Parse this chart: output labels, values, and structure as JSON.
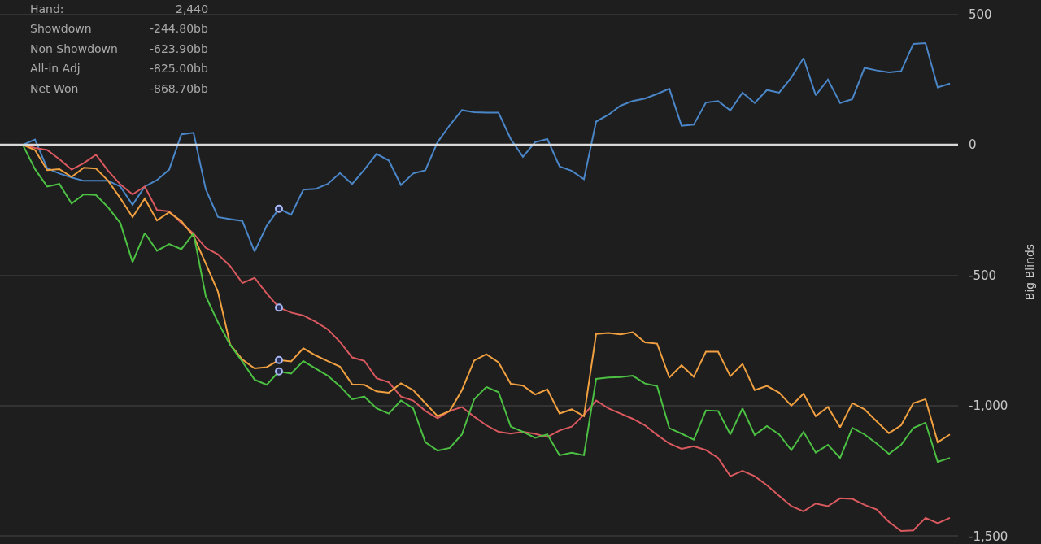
{
  "chart_data": {
    "type": "line",
    "ylabel": "Big Blinds",
    "ylim": [
      -1530,
      555
    ],
    "categories": [
      null,
      null,
      null,
      null,
      null,
      null,
      null,
      null,
      null,
      null,
      null,
      null,
      null,
      null,
      null,
      null,
      null,
      null,
      null,
      null,
      null,
      null,
      null,
      null,
      null,
      null,
      null,
      null,
      null,
      null,
      null,
      null,
      null,
      null,
      null,
      null,
      null,
      null,
      null,
      null,
      null,
      null,
      null,
      null,
      null,
      null,
      null,
      null,
      null,
      null,
      null,
      null,
      null,
      null,
      null,
      null,
      null,
      null,
      null,
      null,
      null,
      null,
      null,
      null,
      null,
      null,
      null,
      null,
      null,
      null,
      null,
      null,
      null,
      null,
      null,
      null,
      null
    ],
    "yticks": [
      500,
      0,
      -500,
      {
        "value": -1000,
        "label": "-1,000"
      },
      {
        "value": -1500,
        "label": "-1,500"
      }
    ],
    "tick_labels": "y",
    "grid": "y",
    "marker": "none",
    "ref_lines": [
      {
        "axis": "y",
        "value": 0,
        "color": "#d8d8d8"
      }
    ],
    "annotations": [
      "Hand:",
      "2,440",
      "Showdown",
      "-244.80bb",
      "Non Showdown",
      "-623.90bb",
      "All-in Adj",
      "-825.00bb",
      "Net Won",
      "-868.70bb"
    ],
    "series": [
      {
        "color": "#4a86c8",
        "values": [
          0,
          20,
          -90,
          -110,
          -125,
          -138,
          -138,
          -138,
          -160,
          -230,
          -160,
          -135,
          -95,
          40,
          46,
          -170,
          -277,
          -285,
          -292,
          -409,
          -310,
          -244.8,
          -268,
          -172,
          -169,
          -150,
          -108,
          -150,
          -95,
          -35,
          -60,
          -154,
          -110,
          -98,
          10,
          75,
          133,
          125,
          123,
          123,
          22,
          -46,
          10,
          22,
          -83,
          -100,
          -132,
          89,
          115,
          150,
          168,
          177,
          195,
          215,
          73,
          77,
          162,
          168,
          132,
          200,
          160,
          210,
          200,
          258,
          332,
          190,
          250,
          160,
          175,
          295,
          285,
          278,
          282,
          387,
          390,
          220,
          235
        ]
      },
      {
        "color": "#d9595f",
        "values": [
          0,
          -12,
          -20,
          -55,
          -95,
          -70,
          -38,
          -100,
          -152,
          -190,
          -160,
          -250,
          -255,
          -300,
          -340,
          -395,
          -420,
          -465,
          -530,
          -510,
          -570,
          -623.9,
          -643,
          -654,
          -678,
          -707,
          -755,
          -815,
          -828,
          -895,
          -910,
          -965,
          -980,
          -1020,
          -1048,
          -1020,
          -1005,
          -1042,
          -1075,
          -1100,
          -1107,
          -1100,
          -1108,
          -1120,
          -1095,
          -1080,
          -1035,
          -980,
          -1010,
          -1030,
          -1050,
          -1075,
          -1112,
          -1145,
          -1165,
          -1155,
          -1170,
          -1200,
          -1270,
          -1250,
          -1270,
          -1305,
          -1345,
          -1385,
          -1405,
          -1375,
          -1385,
          -1355,
          -1357,
          -1380,
          -1398,
          -1445,
          -1480,
          -1478,
          -1430,
          -1450,
          -1430
        ]
      },
      {
        "color": "#f0a040",
        "values": [
          0,
          -20,
          -97,
          -93,
          -123,
          -88,
          -91,
          -138,
          -205,
          -277,
          -206,
          -290,
          -258,
          -293,
          -350,
          -455,
          -563,
          -765,
          -823,
          -857,
          -852,
          -825,
          -830,
          -780,
          -807,
          -829,
          -850,
          -918,
          -920,
          -945,
          -950,
          -914,
          -940,
          -990,
          -1040,
          -1020,
          -940,
          -827,
          -803,
          -834,
          -916,
          -923,
          -957,
          -937,
          -1030,
          -1014,
          -1040,
          -725,
          -721,
          -727,
          -718,
          -757,
          -762,
          -892,
          -845,
          -889,
          -793,
          -793,
          -887,
          -840,
          -940,
          -924,
          -950,
          -1000,
          -954,
          -1040,
          -1005,
          -1083,
          -990,
          -1014,
          -1060,
          -1105,
          -1075,
          -990,
          -975,
          -1140,
          -1110
        ]
      },
      {
        "color": "#4cc043",
        "values": [
          0,
          -93,
          -160,
          -150,
          -225,
          -190,
          -192,
          -240,
          -300,
          -450,
          -338,
          -406,
          -380,
          -400,
          -340,
          -580,
          -680,
          -766,
          -831,
          -900,
          -920,
          -868.7,
          -877,
          -829,
          -857,
          -885,
          -925,
          -975,
          -965,
          -1010,
          -1030,
          -980,
          -1010,
          -1140,
          -1172,
          -1162,
          -1110,
          -975,
          -928,
          -948,
          -1080,
          -1100,
          -1123,
          -1110,
          -1190,
          -1180,
          -1190,
          -897,
          -892,
          -890,
          -885,
          -915,
          -925,
          -1086,
          -1107,
          -1130,
          -1018,
          -1020,
          -1110,
          -1010,
          -1112,
          -1078,
          -1110,
          -1170,
          -1100,
          -1180,
          -1150,
          -1200,
          -1085,
          -1110,
          -1145,
          -1185,
          -1150,
          -1085,
          -1065,
          -1215,
          -1200
        ]
      },
      {
        "type": "scatter",
        "marker": "circle",
        "color": "#a8b8f0",
        "values": [
          null,
          null,
          null,
          null,
          null,
          null,
          null,
          null,
          null,
          null,
          null,
          null,
          null,
          null,
          null,
          null,
          null,
          null,
          null,
          null,
          null,
          -244.8,
          null,
          null,
          null,
          null,
          null,
          null,
          null,
          null,
          null,
          null,
          null,
          null,
          null,
          null,
          null,
          null,
          null,
          null,
          null,
          null,
          null,
          null,
          null,
          null,
          null,
          null,
          null,
          null,
          null,
          null,
          null,
          null,
          null,
          null,
          null,
          null,
          null,
          null,
          null,
          null,
          null,
          null,
          null,
          null,
          null,
          null,
          null,
          null,
          null,
          null,
          null,
          null,
          null,
          null,
          null
        ]
      },
      {
        "type": "scatter",
        "marker": "circle",
        "color": "#a8b8f0",
        "values": [
          null,
          null,
          null,
          null,
          null,
          null,
          null,
          null,
          null,
          null,
          null,
          null,
          null,
          null,
          null,
          null,
          null,
          null,
          null,
          null,
          null,
          -623.9,
          null,
          null,
          null,
          null,
          null,
          null,
          null,
          null,
          null,
          null,
          null,
          null,
          null,
          null,
          null,
          null,
          null,
          null,
          null,
          null,
          null,
          null,
          null,
          null,
          null,
          null,
          null,
          null,
          null,
          null,
          null,
          null,
          null,
          null,
          null,
          null,
          null,
          null,
          null,
          null,
          null,
          null,
          null,
          null,
          null,
          null,
          null,
          null,
          null,
          null,
          null,
          null,
          null,
          null,
          null
        ]
      },
      {
        "type": "scatter",
        "marker": "circle",
        "color": "#a8b8f0",
        "values": [
          null,
          null,
          null,
          null,
          null,
          null,
          null,
          null,
          null,
          null,
          null,
          null,
          null,
          null,
          null,
          null,
          null,
          null,
          null,
          null,
          null,
          -825,
          null,
          null,
          null,
          null,
          null,
          null,
          null,
          null,
          null,
          null,
          null,
          null,
          null,
          null,
          null,
          null,
          null,
          null,
          null,
          null,
          null,
          null,
          null,
          null,
          null,
          null,
          null,
          null,
          null,
          null,
          null,
          null,
          null,
          null,
          null,
          null,
          null,
          null,
          null,
          null,
          null,
          null,
          null,
          null,
          null,
          null,
          null,
          null,
          null,
          null,
          null,
          null,
          null,
          null,
          null
        ]
      },
      {
        "type": "scatter",
        "marker": "circle",
        "color": "#a8b8f0",
        "values": [
          null,
          null,
          null,
          null,
          null,
          null,
          null,
          null,
          null,
          null,
          null,
          null,
          null,
          null,
          null,
          null,
          null,
          null,
          null,
          null,
          null,
          -868.7,
          null,
          null,
          null,
          null,
          null,
          null,
          null,
          null,
          null,
          null,
          null,
          null,
          null,
          null,
          null,
          null,
          null,
          null,
          null,
          null,
          null,
          null,
          null,
          null,
          null,
          null,
          null,
          null,
          null,
          null,
          null,
          null,
          null,
          null,
          null,
          null,
          null,
          null,
          null,
          null,
          null,
          null,
          null,
          null,
          null,
          null,
          null,
          null,
          null,
          null,
          null,
          null,
          null,
          null,
          null
        ]
      }
    ]
  }
}
